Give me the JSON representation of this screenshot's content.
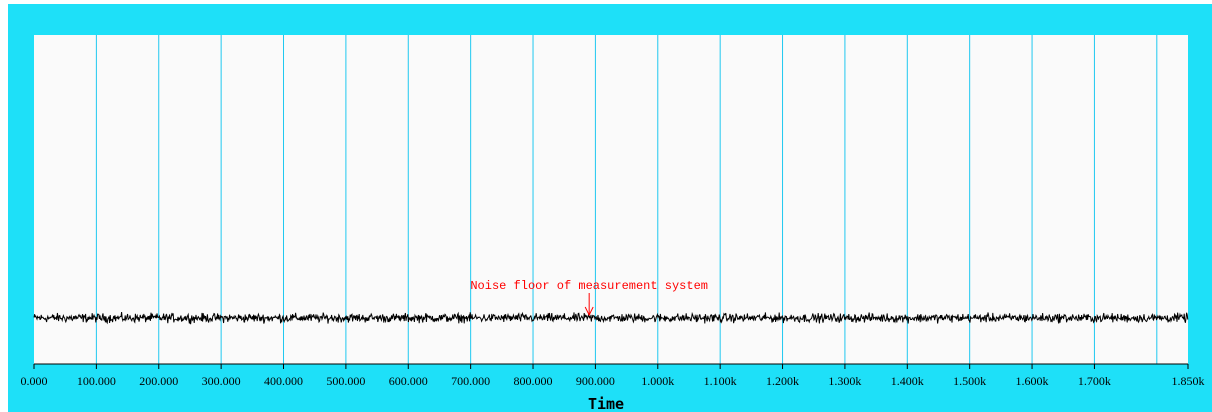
{
  "chart_data": {
    "type": "line",
    "title": "",
    "xlabel": "Time",
    "ylabel": "",
    "xlim": [
      0,
      1850
    ],
    "ylim": [
      0,
      1
    ],
    "grid": "vertical",
    "tick_values": [
      0,
      100,
      200,
      300,
      400,
      500,
      600,
      700,
      800,
      900,
      1000,
      1100,
      1200,
      1300,
      1400,
      1500,
      1600,
      1700,
      1850
    ],
    "tick_labels": [
      "0.000",
      "100.000",
      "200.000",
      "300.000",
      "400.000",
      "500.000",
      "600.000",
      "700.000",
      "800.000",
      "900.000",
      "1.000k",
      "1.100k",
      "1.200k",
      "1.300k",
      "1.400k",
      "1.500k",
      "1.600k",
      "1.700k",
      "1.850k"
    ],
    "series": [
      {
        "color": "#000000",
        "level": 0.14,
        "amplitude": 0.02,
        "x_start": 0,
        "x_end": 1850
      }
    ],
    "annotation": {
      "text": "Noise floor of measurement system",
      "x": 890,
      "color": "#ff0000"
    },
    "colors": {
      "frame": "#1ee0f8",
      "plot_bg": "#fafafa",
      "grid": "#1ec8f0",
      "trace": "#000000",
      "annotation": "#ff0000"
    }
  }
}
